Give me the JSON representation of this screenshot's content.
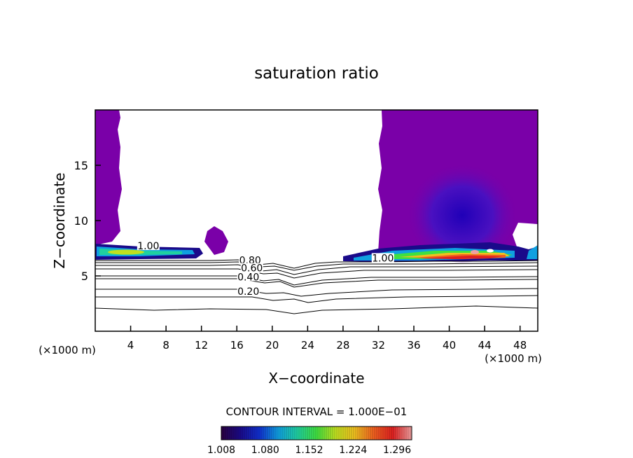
{
  "chart_data": {
    "type": "heatmap",
    "title": "saturation ratio",
    "xlabel": "X−coordinate",
    "ylabel": "Z−coordinate",
    "x_unit_left": "(×1000 m)",
    "x_unit_right": "(×1000 m)",
    "xlim": [
      0,
      50
    ],
    "ylim": [
      0,
      20
    ],
    "x_ticks": [
      {
        "value": 4,
        "label": "4"
      },
      {
        "value": 8,
        "label": "8"
      },
      {
        "value": 12,
        "label": "12"
      },
      {
        "value": 16,
        "label": "16"
      },
      {
        "value": 20,
        "label": "20"
      },
      {
        "value": 24,
        "label": "24"
      },
      {
        "value": 28,
        "label": "28"
      },
      {
        "value": 32,
        "label": "32"
      },
      {
        "value": 36,
        "label": "36"
      },
      {
        "value": 40,
        "label": "40"
      },
      {
        "value": 44,
        "label": "44"
      },
      {
        "value": 48,
        "label": "48"
      }
    ],
    "y_ticks": [
      {
        "value": 5,
        "label": "5"
      },
      {
        "value": 10,
        "label": "10"
      },
      {
        "value": 15,
        "label": "15"
      }
    ],
    "contour_interval_text": "CONTOUR INTERVAL = 1.000E−01",
    "colorbar": {
      "min": 1.008,
      "max": 1.32,
      "tick_values": [
        1.008,
        1.08,
        1.152,
        1.224,
        1.296
      ],
      "tick_labels": [
        "1.008",
        "1.080",
        "1.152",
        "1.224",
        "1.296"
      ],
      "colors": [
        "#2a0040",
        "#1a0a8a",
        "#1030d0",
        "#10a0e0",
        "#20d0a0",
        "#40e040",
        "#c0e020",
        "#f0c020",
        "#f06020",
        "#e02020",
        "#f0a0a0"
      ]
    },
    "contour_labels": [
      {
        "value": "1.00",
        "x": 6.0,
        "z": 7.4
      },
      {
        "value": "1.00",
        "x": 32.5,
        "z": 6.3
      },
      {
        "value": "0.80",
        "x": 17.5,
        "z": 6.1
      },
      {
        "value": "0.60",
        "x": 17.7,
        "z": 5.4
      },
      {
        "value": "0.40",
        "x": 17.3,
        "z": 4.6
      },
      {
        "value": "0.20",
        "x": 17.3,
        "z": 3.3
      }
    ],
    "regions": [
      {
        "name": "supersaturated-column-left",
        "value": 1.008,
        "color": "#7a00a8"
      },
      {
        "name": "supersaturated-column-right",
        "value": 1.008,
        "color": "#7a00a8"
      },
      {
        "name": "cloud-layer-left",
        "value": 1.15
      },
      {
        "name": "cloud-layer-right",
        "value": 1.3
      }
    ],
    "subsaturated_contour_levels": [
      0.2,
      0.4,
      0.6,
      0.8
    ]
  }
}
